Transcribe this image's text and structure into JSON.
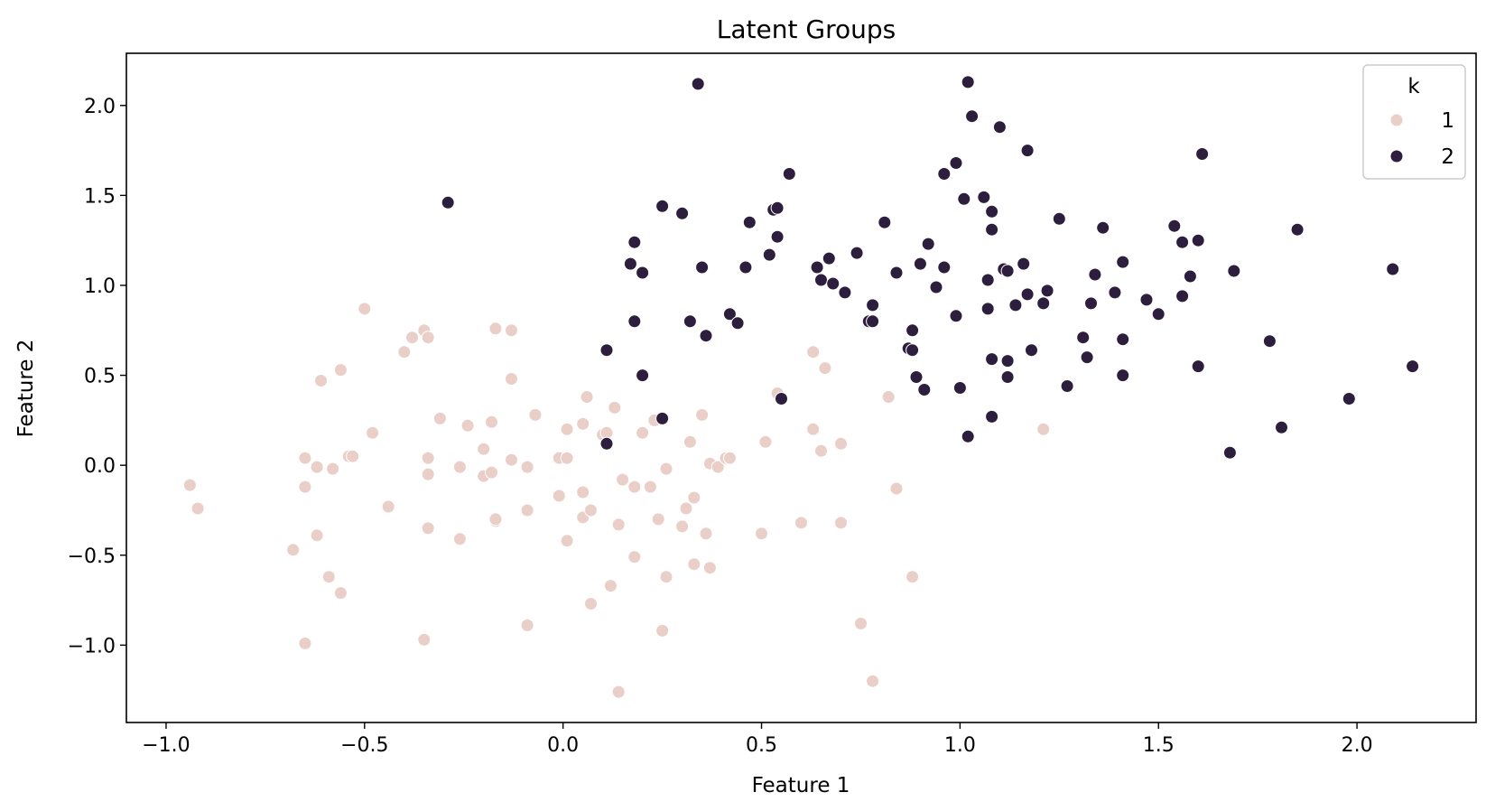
{
  "chart_data": {
    "type": "scatter",
    "title": "Latent Groups",
    "xlabel": "Feature 1",
    "ylabel": "Feature 2",
    "xlim": [
      -1.1,
      2.3
    ],
    "ylim": [
      -1.43,
      2.29
    ],
    "x_ticks": [
      -1.0,
      -0.5,
      0.0,
      0.5,
      1.0,
      1.5,
      2.0
    ],
    "x_tick_labels": [
      "−1.0",
      "−0.5",
      "0.0",
      "0.5",
      "1.0",
      "1.5",
      "2.0"
    ],
    "y_ticks": [
      -1.0,
      -0.5,
      0.0,
      0.5,
      1.0,
      1.5,
      2.0
    ],
    "y_tick_labels": [
      "−1.0",
      "−0.5",
      "0.0",
      "0.5",
      "1.0",
      "1.5",
      "2.0"
    ],
    "grid": false,
    "legend": {
      "title": "k",
      "placement": "top-right"
    },
    "series": [
      {
        "name": "1",
        "color": "#e9cfc7",
        "points": [
          [
            -0.94,
            -0.11
          ],
          [
            -0.92,
            -0.24
          ],
          [
            -0.68,
            -0.47
          ],
          [
            -0.65,
            0.04
          ],
          [
            -0.65,
            -0.12
          ],
          [
            -0.65,
            -0.99
          ],
          [
            -0.62,
            -0.01
          ],
          [
            -0.62,
            -0.39
          ],
          [
            -0.61,
            0.47
          ],
          [
            -0.59,
            -0.62
          ],
          [
            -0.58,
            -0.02
          ],
          [
            -0.56,
            0.53
          ],
          [
            -0.56,
            -0.71
          ],
          [
            -0.54,
            0.05
          ],
          [
            -0.53,
            0.05
          ],
          [
            -0.5,
            0.87
          ],
          [
            -0.48,
            0.18
          ],
          [
            -0.44,
            -0.23
          ],
          [
            -0.4,
            0.63
          ],
          [
            -0.38,
            0.71
          ],
          [
            -0.35,
            0.75
          ],
          [
            -0.35,
            -0.97
          ],
          [
            -0.34,
            0.71
          ],
          [
            -0.34,
            0.04
          ],
          [
            -0.34,
            -0.05
          ],
          [
            -0.34,
            -0.35
          ],
          [
            -0.31,
            0.26
          ],
          [
            -0.26,
            -0.01
          ],
          [
            -0.26,
            -0.41
          ],
          [
            -0.24,
            0.22
          ],
          [
            -0.2,
            0.09
          ],
          [
            -0.2,
            -0.06
          ],
          [
            -0.18,
            0.24
          ],
          [
            -0.18,
            -0.04
          ],
          [
            -0.17,
            0.76
          ],
          [
            -0.17,
            -0.31
          ],
          [
            -0.17,
            -0.3
          ],
          [
            -0.13,
            0.75
          ],
          [
            -0.13,
            0.48
          ],
          [
            -0.13,
            0.03
          ],
          [
            -0.09,
            -0.01
          ],
          [
            -0.09,
            -0.25
          ],
          [
            -0.09,
            -0.89
          ],
          [
            -0.07,
            0.28
          ],
          [
            -0.01,
            0.04
          ],
          [
            -0.01,
            -0.17
          ],
          [
            0.01,
            0.04
          ],
          [
            0.01,
            0.2
          ],
          [
            0.01,
            -0.42
          ],
          [
            0.05,
            0.23
          ],
          [
            0.05,
            -0.15
          ],
          [
            0.05,
            -0.29
          ],
          [
            0.06,
            0.38
          ],
          [
            0.07,
            -0.25
          ],
          [
            0.07,
            -0.77
          ],
          [
            0.1,
            0.17
          ],
          [
            0.11,
            0.18
          ],
          [
            0.12,
            -0.67
          ],
          [
            0.13,
            0.32
          ],
          [
            0.14,
            -0.33
          ],
          [
            0.14,
            -1.26
          ],
          [
            0.15,
            -0.08
          ],
          [
            0.18,
            -0.12
          ],
          [
            0.18,
            -0.51
          ],
          [
            0.2,
            0.18
          ],
          [
            0.22,
            -0.12
          ],
          [
            0.23,
            0.25
          ],
          [
            0.24,
            -0.3
          ],
          [
            0.25,
            -0.92
          ],
          [
            0.26,
            -0.62
          ],
          [
            0.26,
            -0.02
          ],
          [
            0.3,
            -0.34
          ],
          [
            0.31,
            -0.24
          ],
          [
            0.32,
            0.13
          ],
          [
            0.33,
            -0.18
          ],
          [
            0.33,
            -0.55
          ],
          [
            0.35,
            0.28
          ],
          [
            0.36,
            -0.38
          ],
          [
            0.37,
            0.01
          ],
          [
            0.37,
            -0.57
          ],
          [
            0.39,
            -0.01
          ],
          [
            0.41,
            0.04
          ],
          [
            0.42,
            0.04
          ],
          [
            0.5,
            -0.38
          ],
          [
            0.51,
            0.13
          ],
          [
            0.54,
            0.4
          ],
          [
            0.6,
            -0.32
          ],
          [
            0.63,
            0.63
          ],
          [
            0.63,
            0.2
          ],
          [
            0.65,
            0.08
          ],
          [
            0.66,
            0.54
          ],
          [
            0.7,
            0.12
          ],
          [
            0.7,
            -0.32
          ],
          [
            0.75,
            -0.88
          ],
          [
            0.78,
            -1.2
          ],
          [
            0.82,
            0.38
          ],
          [
            0.84,
            -0.13
          ],
          [
            0.88,
            -0.62
          ],
          [
            1.21,
            0.2
          ]
        ]
      },
      {
        "name": "2",
        "color": "#2d1e3e",
        "points": [
          [
            -0.29,
            1.46
          ],
          [
            0.11,
            0.64
          ],
          [
            0.11,
            0.12
          ],
          [
            0.17,
            1.12
          ],
          [
            0.18,
            1.24
          ],
          [
            0.18,
            0.8
          ],
          [
            0.2,
            1.07
          ],
          [
            0.2,
            0.5
          ],
          [
            0.25,
            1.44
          ],
          [
            0.25,
            0.26
          ],
          [
            0.3,
            1.4
          ],
          [
            0.32,
            0.8
          ],
          [
            0.34,
            2.12
          ],
          [
            0.35,
            1.1
          ],
          [
            0.36,
            0.72
          ],
          [
            0.42,
            0.84
          ],
          [
            0.44,
            0.79
          ],
          [
            0.46,
            1.1
          ],
          [
            0.47,
            1.35
          ],
          [
            0.52,
            1.17
          ],
          [
            0.53,
            1.42
          ],
          [
            0.54,
            1.43
          ],
          [
            0.54,
            1.27
          ],
          [
            0.55,
            0.37
          ],
          [
            0.57,
            1.62
          ],
          [
            0.64,
            1.1
          ],
          [
            0.65,
            1.03
          ],
          [
            0.67,
            1.15
          ],
          [
            0.68,
            1.01
          ],
          [
            0.71,
            0.96
          ],
          [
            0.74,
            1.18
          ],
          [
            0.77,
            0.8
          ],
          [
            0.78,
            0.89
          ],
          [
            0.78,
            0.8
          ],
          [
            0.81,
            1.35
          ],
          [
            0.84,
            1.07
          ],
          [
            0.87,
            0.65
          ],
          [
            0.88,
            0.75
          ],
          [
            0.88,
            0.64
          ],
          [
            0.89,
            0.49
          ],
          [
            0.9,
            1.12
          ],
          [
            0.91,
            0.42
          ],
          [
            0.92,
            1.23
          ],
          [
            0.94,
            0.99
          ],
          [
            0.96,
            1.62
          ],
          [
            0.96,
            1.1
          ],
          [
            0.99,
            1.68
          ],
          [
            0.99,
            0.83
          ],
          [
            1.0,
            0.43
          ],
          [
            1.01,
            1.48
          ],
          [
            1.02,
            2.13
          ],
          [
            1.02,
            0.16
          ],
          [
            1.03,
            1.94
          ],
          [
            1.06,
            1.49
          ],
          [
            1.07,
            1.03
          ],
          [
            1.07,
            0.87
          ],
          [
            1.08,
            1.41
          ],
          [
            1.08,
            1.31
          ],
          [
            1.08,
            0.59
          ],
          [
            1.08,
            0.27
          ],
          [
            1.1,
            1.88
          ],
          [
            1.11,
            1.09
          ],
          [
            1.12,
            1.08
          ],
          [
            1.12,
            0.58
          ],
          [
            1.12,
            0.49
          ],
          [
            1.14,
            0.89
          ],
          [
            1.16,
            1.12
          ],
          [
            1.17,
            1.75
          ],
          [
            1.17,
            0.95
          ],
          [
            1.18,
            0.64
          ],
          [
            1.21,
            0.9
          ],
          [
            1.22,
            0.97
          ],
          [
            1.25,
            1.37
          ],
          [
            1.27,
            0.44
          ],
          [
            1.31,
            0.71
          ],
          [
            1.32,
            0.6
          ],
          [
            1.33,
            0.9
          ],
          [
            1.34,
            1.06
          ],
          [
            1.36,
            1.32
          ],
          [
            1.39,
            0.96
          ],
          [
            1.41,
            1.13
          ],
          [
            1.41,
            0.7
          ],
          [
            1.41,
            0.5
          ],
          [
            1.47,
            0.92
          ],
          [
            1.5,
            0.84
          ],
          [
            1.54,
            1.33
          ],
          [
            1.56,
            1.24
          ],
          [
            1.56,
            0.94
          ],
          [
            1.58,
            1.05
          ],
          [
            1.6,
            1.25
          ],
          [
            1.6,
            0.55
          ],
          [
            1.61,
            1.73
          ],
          [
            1.68,
            0.07
          ],
          [
            1.69,
            1.08
          ],
          [
            1.78,
            0.69
          ],
          [
            1.81,
            0.21
          ],
          [
            1.85,
            1.31
          ],
          [
            1.98,
            0.37
          ],
          [
            2.09,
            1.09
          ],
          [
            2.14,
            0.55
          ]
        ]
      }
    ]
  }
}
